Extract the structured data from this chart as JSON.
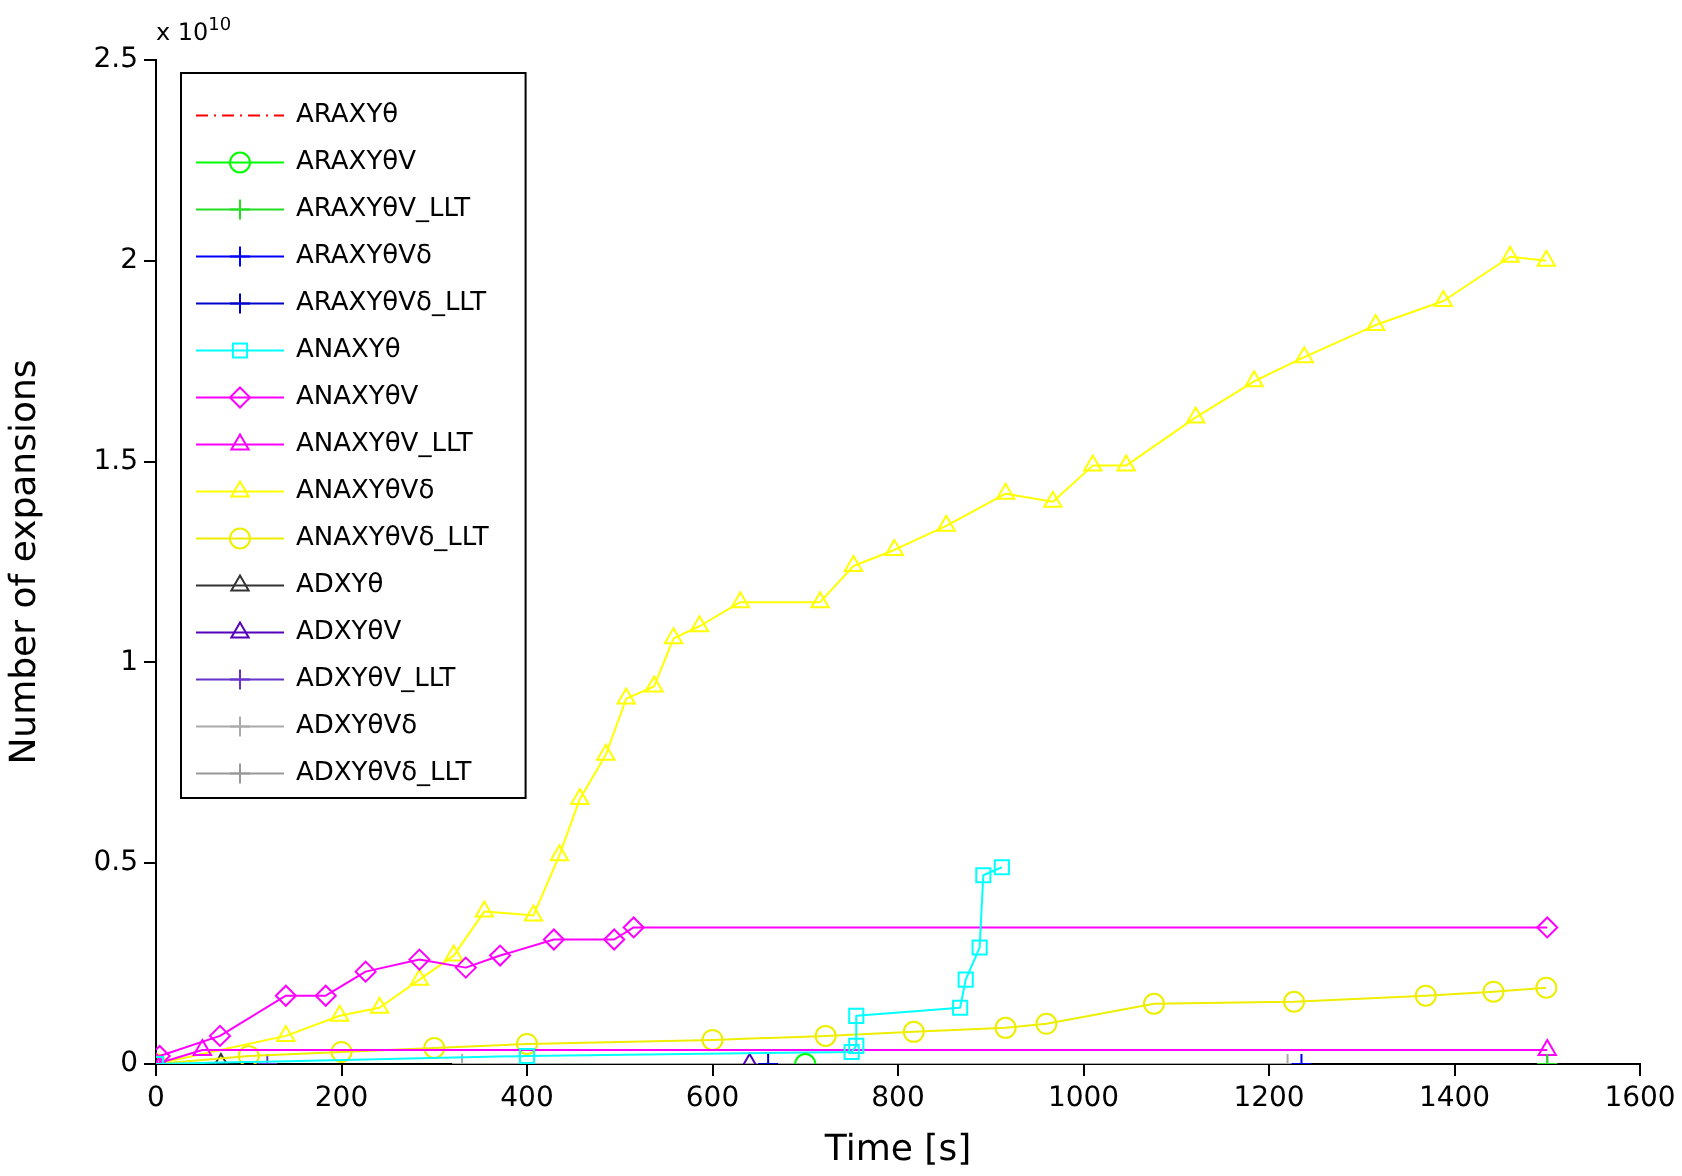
{
  "chart_data": {
    "type": "line",
    "xlabel": "Time [s]",
    "ylabel": "Number of expansions",
    "annotations": [
      "x 10$^{10}$"
    ],
    "xlim": [
      0,
      1600
    ],
    "xticks": [
      0,
      200,
      400,
      600,
      800,
      1000,
      1200,
      1400,
      1600
    ],
    "ylim": [
      0,
      2.5
    ],
    "yticks": [
      0,
      0.5,
      1,
      1.5,
      2,
      2.5
    ],
    "grid": false,
    "legend": "top left",
    "series": [
      {
        "name": "ARAXYθ",
        "color": "#ff0000",
        "marker": "none",
        "line_style": "dashed"
      },
      {
        "name": "ARAXYθV",
        "color": "#00ff00",
        "marker": "circle",
        "x": [
          700
        ],
        "values": [
          0
        ]
      },
      {
        "name": "ARAXYθV_LLT",
        "color": "#22dd22",
        "marker": "cross",
        "x": [
          1500
        ],
        "values": [
          0
        ]
      },
      {
        "name": "ARAXYθVδ",
        "color": "#0000ff",
        "marker": "cross",
        "x": [
          1235
        ],
        "values": [
          0
        ]
      },
      {
        "name": "ARAXYθVδ_LLT",
        "color": "#0000cc",
        "marker": "cross",
        "x": [
          660
        ],
        "values": [
          0
        ]
      },
      {
        "name": "ANAXYθ",
        "color": "#00ffff",
        "marker": "square",
        "x": [
          0,
          400,
          750,
          755,
          755,
          867,
          873,
          888,
          892,
          912
        ],
        "values": [
          0,
          0.02,
          0.03,
          0.045,
          0.12,
          0.14,
          0.21,
          0.29,
          0.47,
          0.49
        ]
      },
      {
        "name": "ANAXYθV",
        "color": "#ff00ff",
        "marker": "diamond",
        "x": [
          0,
          4,
          69,
          140,
          183,
          226,
          284,
          334,
          371,
          429,
          494,
          515,
          1500
        ],
        "values": [
          0,
          0.02,
          0.07,
          0.17,
          0.17,
          0.23,
          0.26,
          0.24,
          0.27,
          0.31,
          0.31,
          0.34,
          0.34
        ]
      },
      {
        "name": "ANAXYθV_LLT",
        "color": "#ff00ff",
        "marker": "triangle",
        "x": [
          0,
          50,
          1500
        ],
        "values": [
          0,
          0.035,
          0.035
        ]
      },
      {
        "name": "ANAXYθVδ",
        "color": "#ffff00",
        "marker": "triangle",
        "x": [
          0,
          140,
          198,
          241,
          284,
          321,
          354,
          407,
          435,
          457,
          485,
          507,
          537,
          558,
          586,
          630,
          716,
          752,
          796,
          852,
          916,
          967,
          1010,
          1046,
          1121,
          1184,
          1238,
          1315,
          1388,
          1460,
          1499
        ],
        "values": [
          0,
          0.07,
          0.12,
          0.14,
          0.21,
          0.27,
          0.38,
          0.37,
          0.52,
          0.66,
          0.77,
          0.91,
          0.94,
          1.06,
          1.09,
          1.15,
          1.15,
          1.24,
          1.28,
          1.34,
          1.42,
          1.4,
          1.49,
          1.49,
          1.61,
          1.7,
          1.76,
          1.84,
          1.9,
          2.01,
          2.0
        ]
      },
      {
        "name": "ANAXYθVδ_LLT",
        "color": "#eeee00",
        "marker": "circle",
        "x": [
          0,
          100,
          200,
          300,
          400,
          600,
          722,
          817,
          916,
          960,
          1076,
          1227,
          1369,
          1442,
          1499
        ],
        "values": [
          0,
          0.02,
          0.03,
          0.04,
          0.05,
          0.06,
          0.07,
          0.08,
          0.09,
          0.1,
          0.15,
          0.155,
          0.17,
          0.18,
          0.19
        ]
      },
      {
        "name": "ADXYθ",
        "color": "#333333",
        "marker": "triangle",
        "x": [
          70
        ],
        "values": [
          0
        ]
      },
      {
        "name": "ADXYθV",
        "color": "#5500bb",
        "marker": "triangle",
        "x": [
          640
        ],
        "values": [
          0
        ]
      },
      {
        "name": "ADXYθV_LLT",
        "color": "#6633cc",
        "marker": "cross",
        "x": [
          120
        ],
        "values": [
          0
        ]
      },
      {
        "name": "ADXYθVδ",
        "color": "#aaaaaa",
        "marker": "cross",
        "x": [
          330,
          1220
        ],
        "values": [
          0,
          0
        ]
      },
      {
        "name": "ADXYθVδ_LLT",
        "color": "#999999",
        "marker": "cross",
        "x": [
          1500
        ],
        "values": [
          0
        ]
      }
    ]
  }
}
